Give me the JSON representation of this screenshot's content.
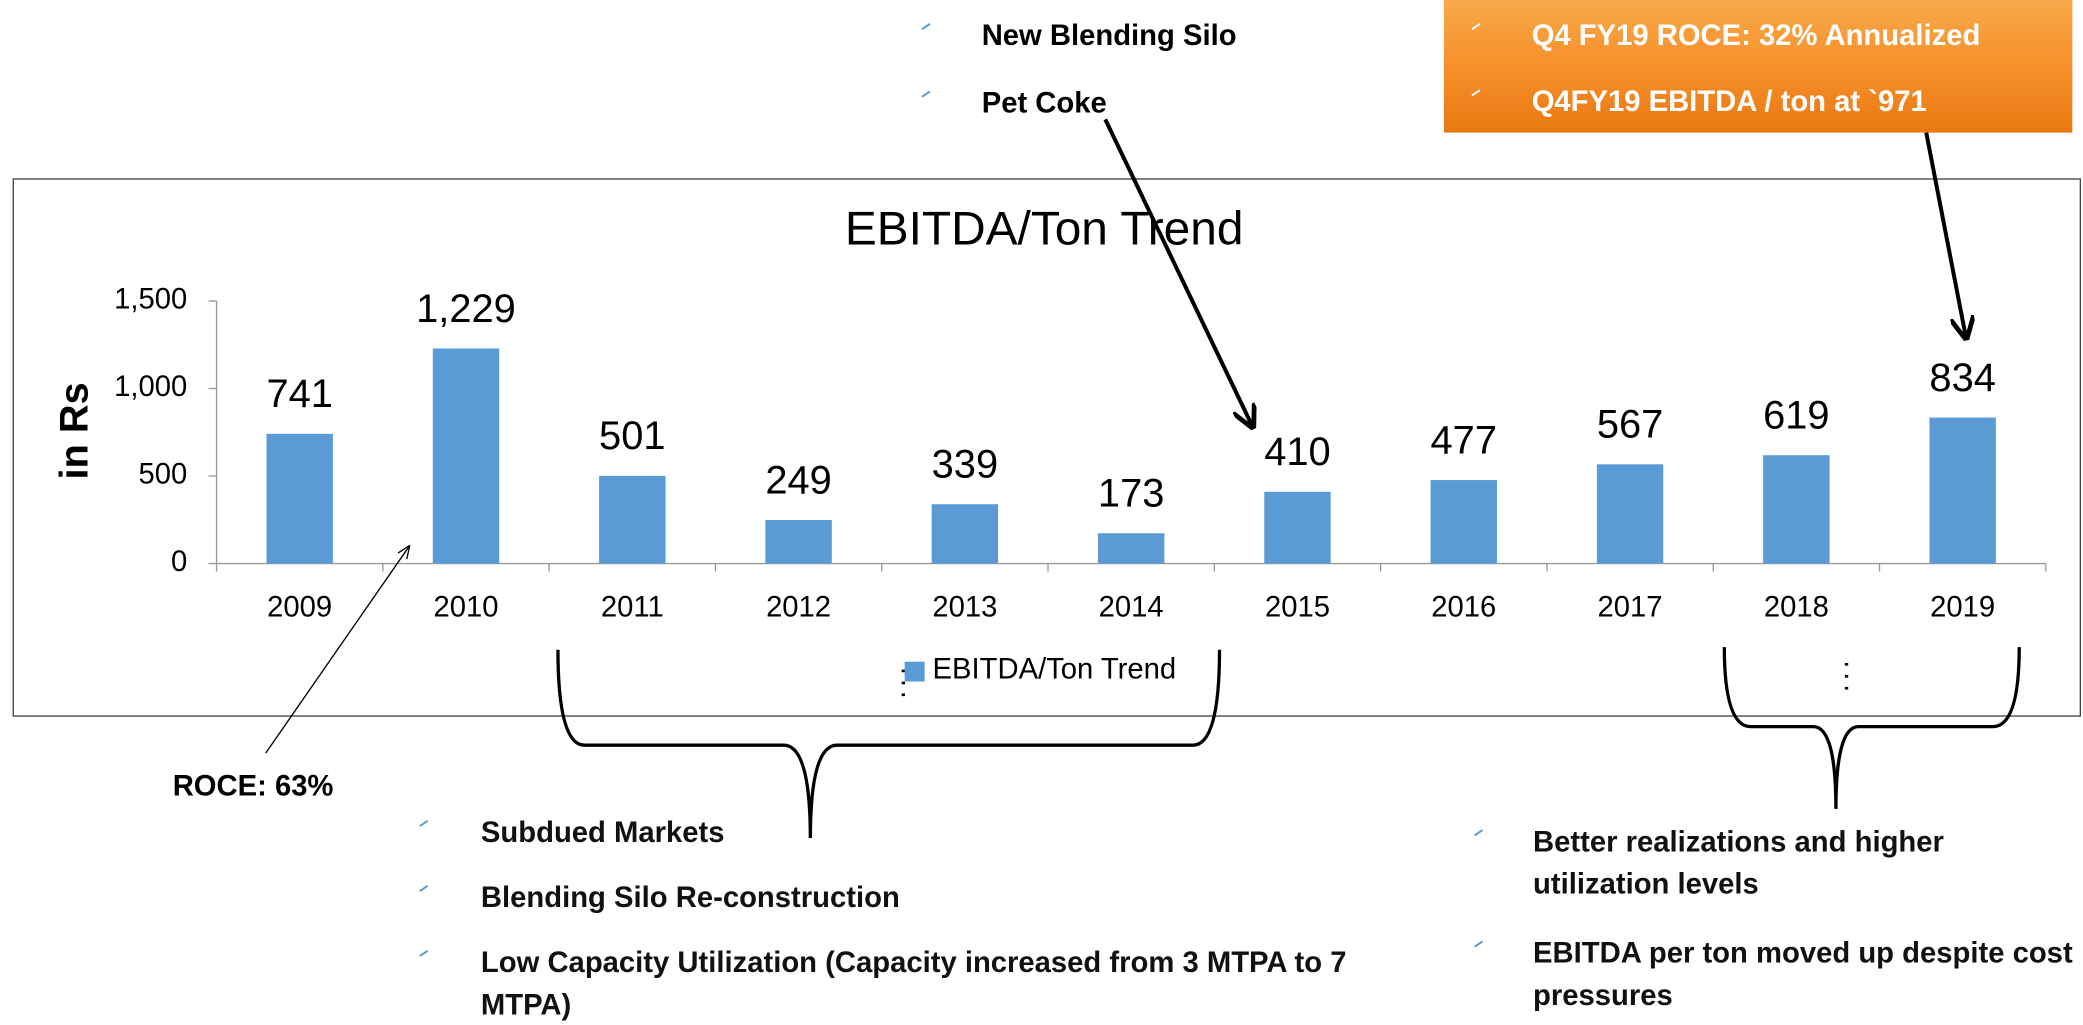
{
  "chart_data": {
    "type": "bar",
    "title": "EBITDA/Ton Trend",
    "y_label": "in Rs",
    "categories": [
      "2009",
      "2010",
      "2011",
      "2012",
      "2013",
      "2014",
      "2015",
      "2016",
      "2017",
      "2018",
      "2019"
    ],
    "series": [
      {
        "name": "EBITDA/Ton Trend",
        "color": "#5b9bd5",
        "values": [
          741,
          1229,
          501,
          249,
          339,
          173,
          410,
          477,
          567,
          619,
          834
        ],
        "value_labels": [
          "741",
          "1,229",
          "501",
          "249",
          "339",
          "173",
          "410",
          "477",
          "567",
          "619",
          "834"
        ]
      }
    ],
    "ylim": [
      0,
      1500
    ],
    "yticks": [
      0,
      500,
      {
        "value": 1000,
        "label": "1,000"
      },
      {
        "value": 1500,
        "label": "1,500"
      }
    ],
    "legend": "bottom",
    "annotations": {
      "top_bullets": [
        "New Blending Silo",
        "Pet Coke"
      ],
      "highlight_box": [
        "Q4 FY19 ROCE: 32% Annualized",
        "Q4FY19 EBITDA / ton at `971"
      ],
      "roce_2010": "ROCE:  63%",
      "left_bullets": [
        "Subdued Markets",
        "Blending Silo Re-construction",
        "Low Capacity Utilization (Capacity increased from 3 MTPA to 7 MTPA)"
      ],
      "right_bullets": [
        "Better realizations and higher utilization levels",
        "EBITDA per ton moved up despite cost pressures"
      ]
    }
  }
}
